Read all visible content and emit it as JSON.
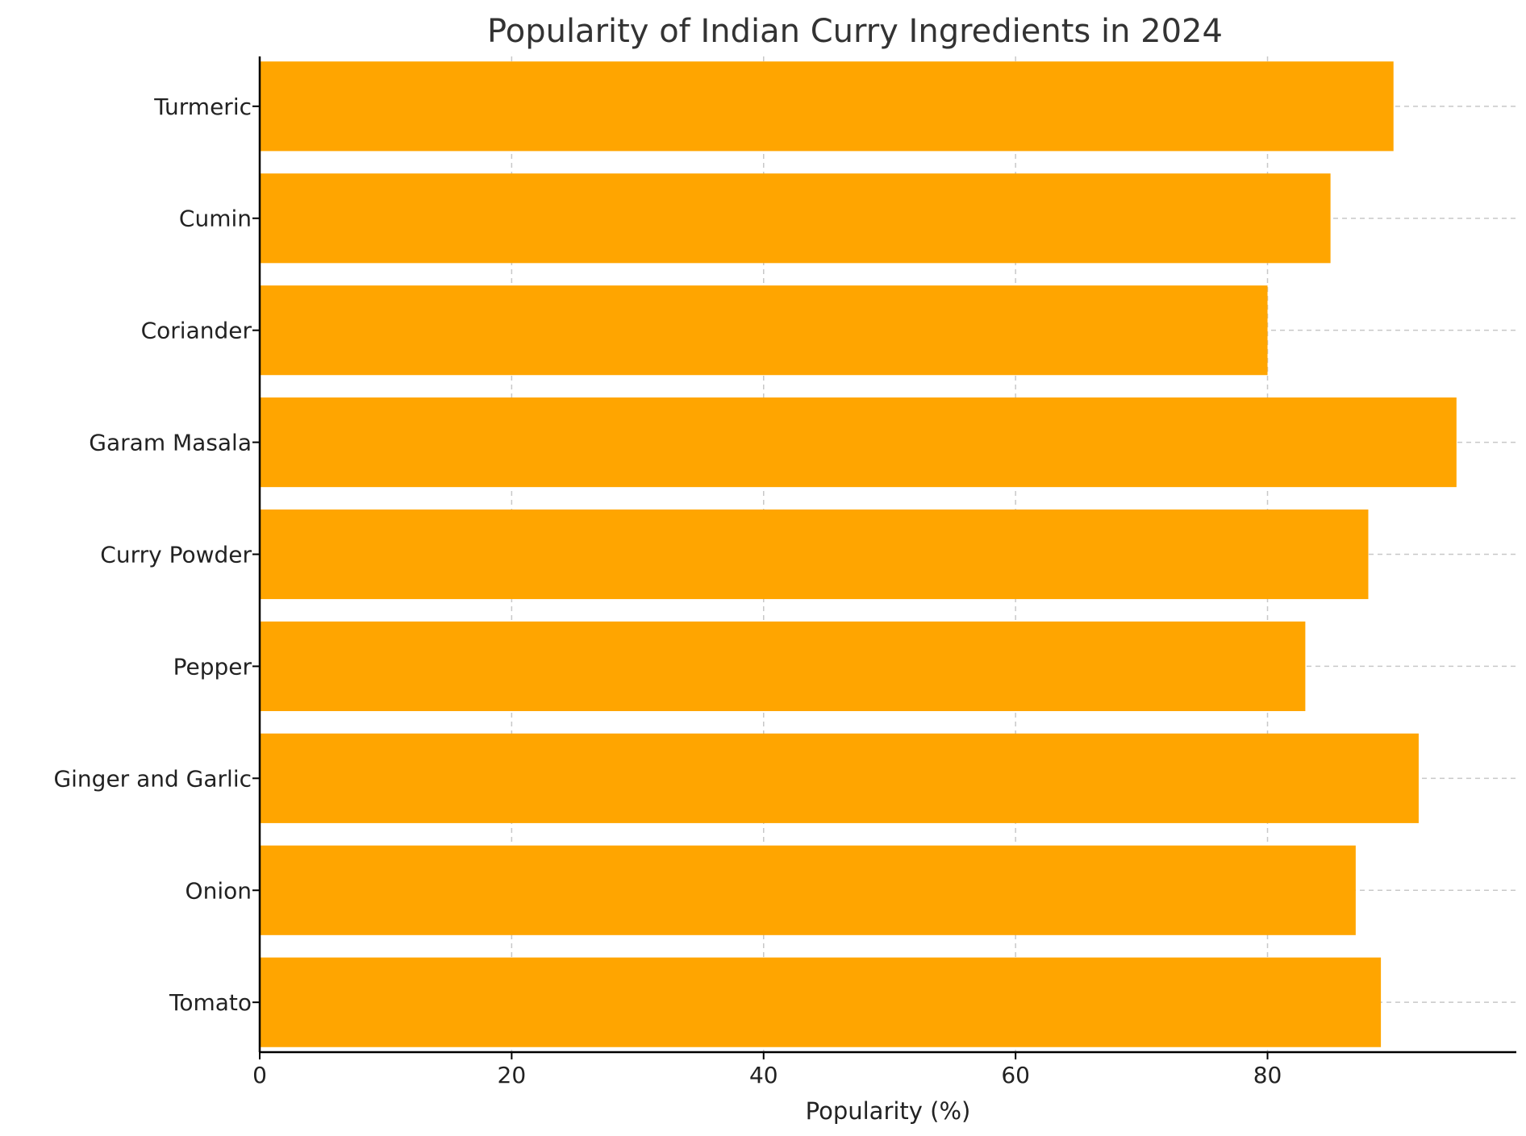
{
  "chart_data": {
    "type": "bar",
    "orientation": "horizontal",
    "title": "Popularity of Indian Curry Ingredients in 2024",
    "xlabel": "Popularity (%)",
    "ylabel": "",
    "categories": [
      "Tomato",
      "Onion",
      "Ginger and Garlic",
      "Pepper",
      "Curry Powder",
      "Garam Masala",
      "Coriander",
      "Cumin",
      "Turmeric"
    ],
    "values": [
      89,
      87,
      92,
      83,
      88,
      95,
      80,
      85,
      90
    ],
    "xlim": [
      0,
      99.75
    ],
    "xticks": [
      0,
      20,
      40,
      60,
      80
    ],
    "grid": true,
    "bar_color": "#FFA500"
  }
}
